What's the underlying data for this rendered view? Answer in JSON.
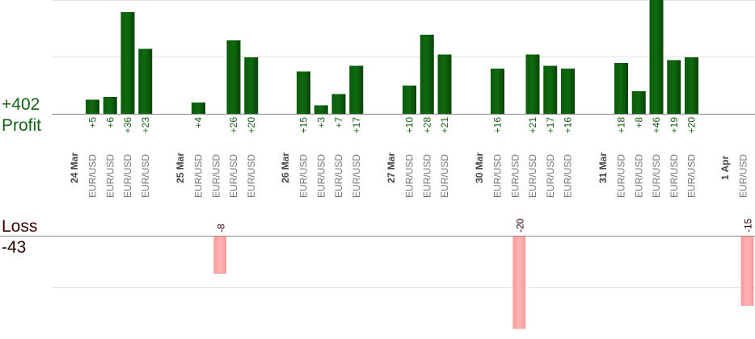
{
  "summary": {
    "profit_total": "+402",
    "profit_label": "Profit",
    "loss_label": "Loss",
    "loss_total": "-43"
  },
  "colors": {
    "profit_bar": "#0f6a0f",
    "profit_text": "#176217",
    "loss_bar": "#ffb3b3",
    "loss_text": "#2a0000",
    "grid": "#e6e6e6",
    "axis": "#888888",
    "date_text": "#444444",
    "pair_text": "#777777"
  },
  "chart_data": {
    "type": "bar",
    "subtype": "diverging",
    "grid": true,
    "series": [
      {
        "name": "Profit",
        "values": [
          5,
          6,
          36,
          23,
          4,
          26,
          20,
          15,
          3,
          7,
          17,
          10,
          28,
          21,
          16,
          21,
          17,
          16,
          18,
          8,
          46,
          19,
          20
        ],
        "labels": [
          "+5",
          "+6",
          "+36",
          "+23",
          "+4",
          "+26",
          "+20",
          "+15",
          "+3",
          "+7",
          "+17",
          "+10",
          "+28",
          "+21",
          "+16",
          "+21",
          "+17",
          "+16",
          "+18",
          "+8",
          "+46",
          "+19",
          "+20"
        ]
      },
      {
        "name": "Loss",
        "values": [
          -8,
          -20,
          -15
        ],
        "labels": [
          "-8",
          "-20",
          "-15"
        ]
      }
    ],
    "days": [
      {
        "date": "24 Mar",
        "trades": [
          {
            "pair": "EUR/USD",
            "profit": 5
          },
          {
            "pair": "EUR/USD",
            "profit": 6
          },
          {
            "pair": "EUR/USD",
            "profit": 36
          },
          {
            "pair": "EUR/USD",
            "profit": 23
          }
        ]
      },
      {
        "date": "25 Mar",
        "trades": [
          {
            "pair": "EUR/USD",
            "profit": 4
          },
          {
            "pair": "EUR/USD",
            "loss": -8
          },
          {
            "pair": "EUR/USD",
            "profit": 26
          },
          {
            "pair": "EUR/USD",
            "profit": 20
          }
        ]
      },
      {
        "date": "26 Mar",
        "trades": [
          {
            "pair": "EUR/USD",
            "profit": 15
          },
          {
            "pair": "EUR/USD",
            "profit": 3
          },
          {
            "pair": "EUR/USD",
            "profit": 7
          },
          {
            "pair": "EUR/USD",
            "profit": 17
          }
        ]
      },
      {
        "date": "27 Mar",
        "trades": [
          {
            "pair": "EUR/USD",
            "profit": 10
          },
          {
            "pair": "EUR/USD",
            "profit": 28
          },
          {
            "pair": "EUR/USD",
            "profit": 21
          }
        ]
      },
      {
        "date": "30 Mar",
        "trades": [
          {
            "pair": "EUR/USD",
            "profit": 16
          },
          {
            "pair": "EUR/USD",
            "loss": -20
          },
          {
            "pair": "EUR/USD",
            "profit": 21
          },
          {
            "pair": "EUR/USD",
            "profit": 17
          },
          {
            "pair": "EUR/USD",
            "profit": 16
          }
        ]
      },
      {
        "date": "31 Mar",
        "trades": [
          {
            "pair": "EUR/USD",
            "profit": 18
          },
          {
            "pair": "EUR/USD",
            "profit": 8
          },
          {
            "pair": "EUR/USD",
            "profit": 46
          },
          {
            "pair": "EUR/USD",
            "profit": 19
          },
          {
            "pair": "EUR/USD",
            "profit": 20
          }
        ]
      },
      {
        "date": "1 Apr",
        "trades": [
          {
            "pair": "EUR/USD",
            "loss": -15
          }
        ]
      }
    ]
  }
}
